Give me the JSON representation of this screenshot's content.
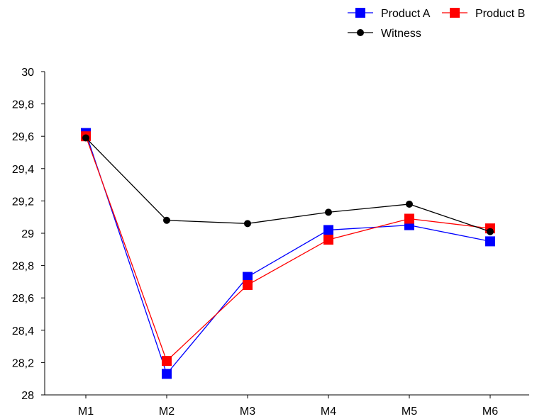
{
  "chart_data": {
    "type": "line",
    "title": "",
    "xlabel": "",
    "ylabel": "",
    "categories": [
      "M1",
      "M2",
      "M3",
      "M4",
      "M5",
      "M6"
    ],
    "ylim": [
      28,
      30
    ],
    "y_ticks": [
      "28",
      "28,2",
      "28,4",
      "28,6",
      "28,8",
      "29",
      "29,2",
      "29,4",
      "29,6",
      "29,8",
      "30"
    ],
    "grid": false,
    "legend_position": "top-right",
    "series": [
      {
        "name": "Product A",
        "color": "#0000ff",
        "marker": "square",
        "values": [
          29.62,
          28.13,
          28.73,
          29.02,
          29.05,
          28.95
        ]
      },
      {
        "name": "Product B",
        "color": "#ff0000",
        "marker": "square",
        "values": [
          29.6,
          28.21,
          28.68,
          28.96,
          29.09,
          29.03
        ]
      },
      {
        "name": "Witness",
        "color": "#000000",
        "marker": "circle",
        "values": [
          29.59,
          29.08,
          29.06,
          29.13,
          29.18,
          29.01
        ]
      }
    ]
  }
}
